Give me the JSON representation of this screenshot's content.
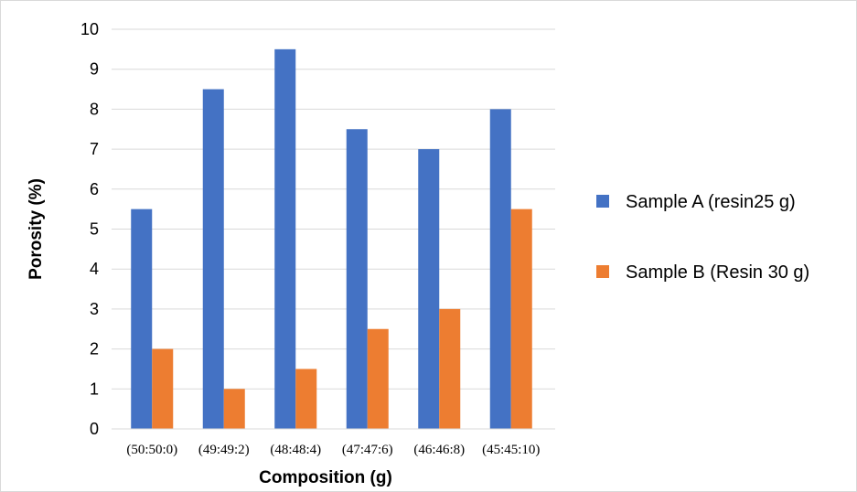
{
  "chart_data": {
    "type": "bar",
    "categories": [
      "(50:50:0)",
      "(49:49:2)",
      "(48:48:4)",
      "(47:47:6)",
      "(46:46:8)",
      "(45:45:10)"
    ],
    "series": [
      {
        "name": "Sample A (resin25 g)",
        "values": [
          5.5,
          8.5,
          9.5,
          7.5,
          7.0,
          8.0
        ],
        "color": "#4472C4"
      },
      {
        "name": "Sample B (Resin 30 g)",
        "values": [
          2.0,
          1.0,
          1.5,
          2.5,
          3.0,
          5.5
        ],
        "color": "#ED7D31"
      }
    ],
    "title": "",
    "xlabel": "Composition (g)",
    "ylabel": "Porosity (%)",
    "ylim": [
      0,
      10
    ],
    "yticks": [
      0,
      1,
      2,
      3,
      4,
      5,
      6,
      7,
      8,
      9,
      10
    ],
    "grid": true,
    "legend_position": "right"
  }
}
